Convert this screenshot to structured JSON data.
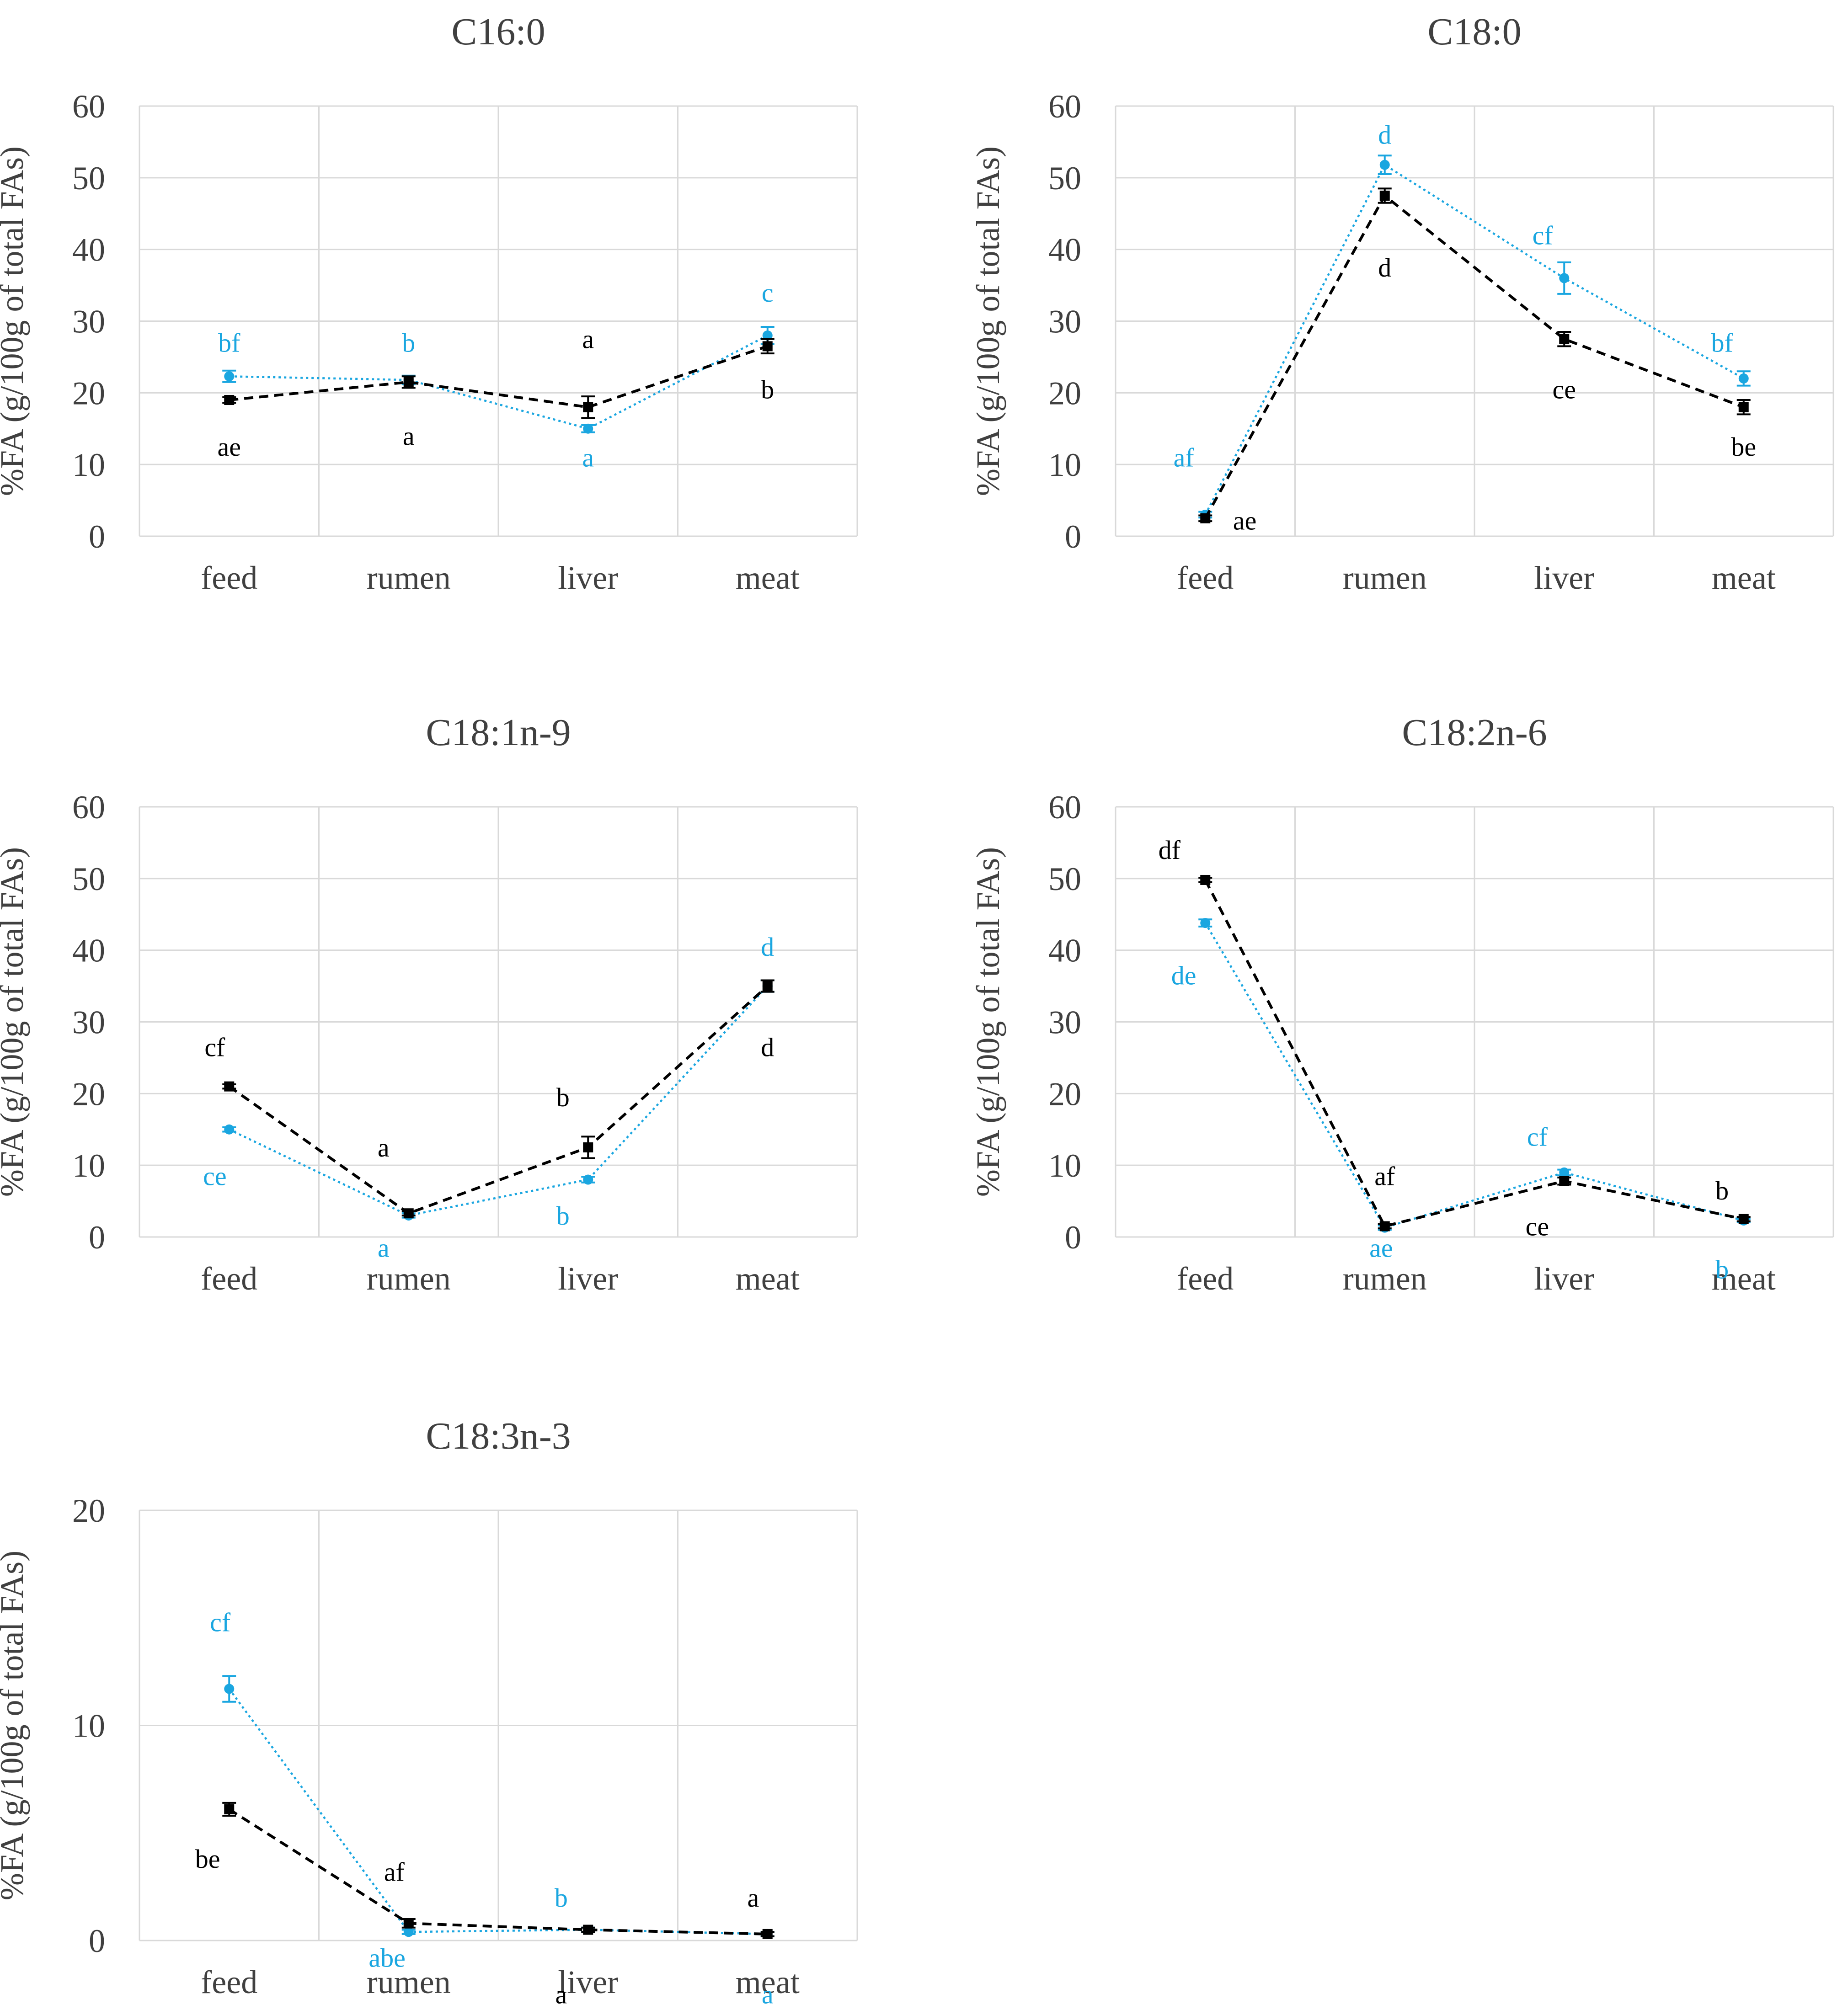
{
  "colors": {
    "black_series": "#000000",
    "blue_series": "#1aa6e0",
    "grid": "#d9d9d9",
    "text": "#404040"
  },
  "chart_data": [
    {
      "type": "line",
      "title": "C16:0",
      "ylabel": "%FA (g/100g of total FAs)",
      "categories": [
        "feed",
        "rumen",
        "liver",
        "meat"
      ],
      "ylim": [
        0,
        60
      ],
      "yticks": [
        "0",
        "10",
        "20",
        "30",
        "40",
        "50",
        "60"
      ],
      "series": [
        {
          "name": "black",
          "values": [
            19.0,
            21.5,
            18.0,
            26.5
          ],
          "errors": [
            0.4,
            0.8,
            1.5,
            1.0
          ],
          "letters": [
            "ae",
            "a",
            "a",
            "b"
          ],
          "letter_y": [
            12.5,
            14.0,
            27.5,
            20.5
          ]
        },
        {
          "name": "blue",
          "values": [
            22.3,
            21.8,
            15.0,
            28.0
          ],
          "errors": [
            0.8,
            0.6,
            0.5,
            1.2
          ],
          "letters": [
            "bf",
            "b",
            "a",
            "c"
          ],
          "letter_y": [
            27.0,
            27.0,
            11.0,
            34.0
          ]
        }
      ]
    },
    {
      "type": "line",
      "title": "C18:0",
      "ylabel": "%FA (g/100g of total FAs)",
      "categories": [
        "feed",
        "rumen",
        "liver",
        "meat"
      ],
      "ylim": [
        0,
        60
      ],
      "yticks": [
        "0",
        "10",
        "20",
        "30",
        "40",
        "50",
        "60"
      ],
      "series": [
        {
          "name": "black",
          "values": [
            2.5,
            47.5,
            27.5,
            18.0
          ],
          "errors": [
            0.4,
            1.0,
            1.0,
            1.0
          ],
          "letters": [
            "ae",
            "d",
            "ce",
            "be"
          ],
          "letter_y": [
            2.2,
            37.5,
            20.5,
            12.5
          ],
          "letter_dx": [
            0.22,
            0,
            0,
            0
          ]
        },
        {
          "name": "blue",
          "values": [
            3.0,
            51.8,
            36.0,
            22.0
          ],
          "errors": [
            0.4,
            1.3,
            2.2,
            1.0
          ],
          "letters": [
            "af",
            "d",
            "cf",
            "bf"
          ],
          "letter_y": [
            11.0,
            56.0,
            42.0,
            27.0
          ],
          "letter_dx": [
            -0.12,
            0,
            -0.12,
            -0.12
          ]
        }
      ]
    },
    {
      "type": "line",
      "title": "C18:1n-9",
      "ylabel": "%FA (g/100g of total FAs)",
      "categories": [
        "feed",
        "rumen",
        "liver",
        "meat"
      ],
      "ylim": [
        0,
        60
      ],
      "yticks": [
        "0",
        "10",
        "20",
        "30",
        "40",
        "50",
        "60"
      ],
      "series": [
        {
          "name": "black",
          "values": [
            21.0,
            3.3,
            12.5,
            35.0
          ],
          "errors": [
            0.3,
            0.3,
            1.5,
            0.8
          ],
          "letters": [
            "cf",
            "a",
            "b",
            "d"
          ],
          "letter_y": [
            26.5,
            12.5,
            19.5,
            26.5
          ],
          "letter_dx": [
            -0.08,
            -0.14,
            -0.14,
            0
          ]
        },
        {
          "name": "blue",
          "values": [
            15.0,
            3.0,
            8.0,
            35.0
          ],
          "errors": [
            0.3,
            0.3,
            0.4,
            0.8
          ],
          "letters": [
            "ce",
            "a",
            "b",
            "d"
          ],
          "letter_y": [
            8.5,
            -1.5,
            3.0,
            40.5
          ],
          "letter_dx": [
            -0.08,
            -0.14,
            -0.14,
            0
          ]
        }
      ]
    },
    {
      "type": "line",
      "title": "C18:2n-6",
      "ylabel": "%FA (g/100g of total FAs)",
      "categories": [
        "feed",
        "rumen",
        "liver",
        "meat"
      ],
      "ylim": [
        0,
        60
      ],
      "yticks": [
        "0",
        "10",
        "20",
        "30",
        "40",
        "50",
        "60"
      ],
      "series": [
        {
          "name": "black",
          "values": [
            49.8,
            1.5,
            7.8,
            2.5
          ],
          "errors": [
            0.3,
            0.3,
            0.5,
            0.3
          ],
          "letters": [
            "df",
            "af",
            "ce",
            "b"
          ],
          "letter_y": [
            54.0,
            8.5,
            1.5,
            6.5
          ],
          "letter_dx": [
            -0.2,
            0,
            -0.15,
            -0.12
          ]
        },
        {
          "name": "blue",
          "values": [
            43.8,
            1.3,
            9.0,
            2.3
          ],
          "errors": [
            0.5,
            0.3,
            0.4,
            0.2
          ],
          "letters": [
            "de",
            "ae",
            "cf",
            "b"
          ],
          "letter_y": [
            36.5,
            -1.5,
            14.0,
            -4.5
          ],
          "letter_dx": [
            -0.12,
            -0.02,
            -0.15,
            -0.12
          ]
        }
      ]
    },
    {
      "type": "line",
      "title": "C18:3n-3",
      "ylabel": "%FA (g/100g of total FAs)",
      "categories": [
        "feed",
        "rumen",
        "liver",
        "meat"
      ],
      "ylim": [
        0,
        20
      ],
      "yticks": [
        "0",
        "10",
        "20"
      ],
      "series": [
        {
          "name": "black",
          "values": [
            6.1,
            0.8,
            0.5,
            0.3
          ],
          "errors": [
            0.3,
            0.2,
            0.1,
            0.1
          ],
          "letters": [
            "be",
            "af",
            "a",
            "a"
          ],
          "letter_y": [
            3.8,
            3.2,
            -2.5,
            2.0
          ],
          "letter_dx": [
            -0.12,
            -0.08,
            -0.15,
            -0.08
          ]
        },
        {
          "name": "blue",
          "values": [
            11.7,
            0.4,
            0.5,
            0.3
          ],
          "errors": [
            0.6,
            0.1,
            0.1,
            0.1
          ],
          "letters": [
            "cf",
            "abe",
            "b",
            "a"
          ],
          "letter_y": [
            14.8,
            -0.8,
            2.0,
            -2.5
          ],
          "letter_dx": [
            -0.05,
            -0.12,
            -0.15,
            0
          ]
        }
      ]
    }
  ]
}
